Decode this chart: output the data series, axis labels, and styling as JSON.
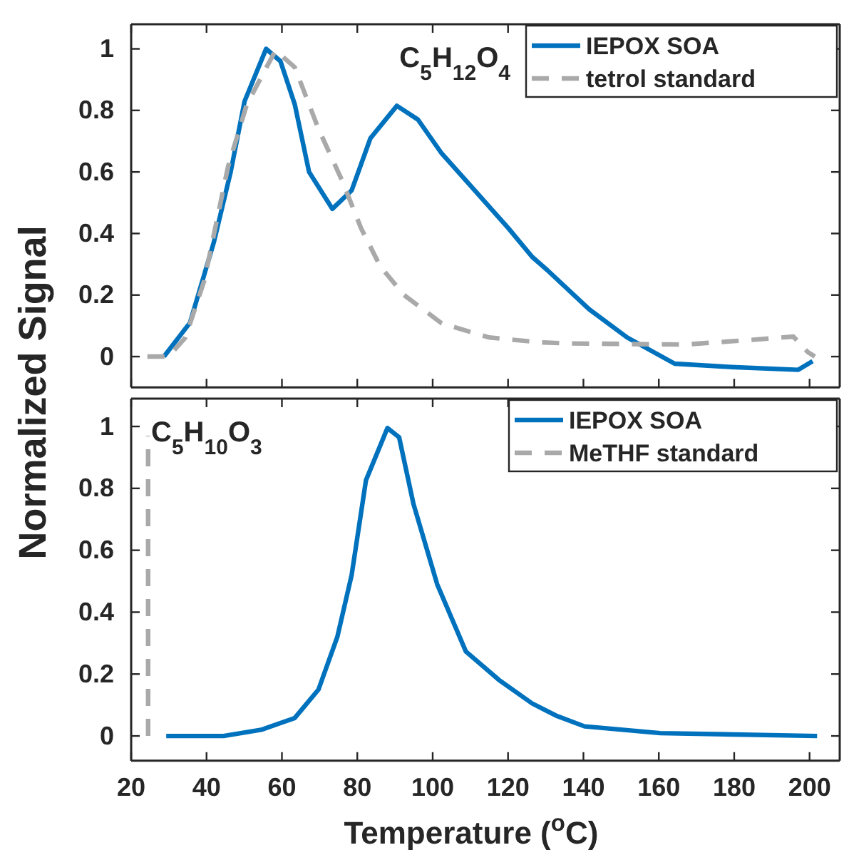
{
  "chart_data": [
    {
      "type": "line",
      "ylabel": "Normalized Signal",
      "annotations": [
        "C$_{5}$H$_{12}$O$_{4}$"
      ],
      "xlim": [
        20,
        208
      ],
      "xticks": [
        20,
        40,
        60,
        80,
        100,
        120,
        140,
        160,
        180,
        200
      ],
      "ylim": [
        -0.1,
        1.08
      ],
      "yticks": [
        0,
        0.2,
        0.4,
        0.6,
        0.8,
        1
      ],
      "tick_labels": "y",
      "legend": "top right",
      "line_style": "solid",
      "series": [
        {
          "name": "IEPOX SOA",
          "color": "#0072bd",
          "x": [
            28.7,
            35.6,
            41.9,
            46.4,
            50.1,
            55.8,
            59.6,
            63.4,
            67.2,
            73.4,
            78.5,
            83.5,
            90.5,
            96.1,
            102.4,
            110,
            120.1,
            126.4,
            130.5,
            141.5,
            151.6,
            164.2,
            179.3,
            197,
            200.8
          ],
          "values": [
            0,
            0.11,
            0.37,
            0.6,
            0.83,
            1,
            0.96,
            0.82,
            0.6,
            0.48,
            0.54,
            0.71,
            0.815,
            0.77,
            0.66,
            0.556,
            0.417,
            0.324,
            0.28,
            0.154,
            0.062,
            -0.023,
            -0.034,
            -0.043,
            -0.015
          ]
        },
        {
          "name": "tetrol standard",
          "color": "#a9a9a9",
          "line_style": "dashed",
          "x": [
            24.3,
            29.9,
            34.4,
            39.4,
            45.7,
            50.7,
            58.3,
            63.4,
            69.7,
            76,
            81,
            86.1,
            92.4,
            102.4,
            115,
            128.9,
            135.2,
            166.7,
            184.4,
            195.7,
            199.5,
            201.4
          ],
          "values": [
            0,
            0,
            0.062,
            0.247,
            0.617,
            0.82,
            0.995,
            0.94,
            0.74,
            0.571,
            0.417,
            0.293,
            0.2,
            0.108,
            0.062,
            0.046,
            0.043,
            0.039,
            0.054,
            0.065,
            0.015,
            0
          ]
        }
      ]
    },
    {
      "type": "line",
      "xlabel": "Temperature ($^{o}$C)",
      "annotations": [
        "C$_{5}$H$_{10}$O$_{3}$"
      ],
      "xlim": [
        20,
        208
      ],
      "xticks": [
        20,
        40,
        60,
        80,
        100,
        120,
        140,
        160,
        180,
        200
      ],
      "ylim": [
        -0.08,
        1.09
      ],
      "yticks": [
        0,
        0.2,
        0.4,
        0.6,
        0.8,
        1
      ],
      "legend": "top right",
      "line_style": "solid",
      "series": [
        {
          "name": "IEPOX SOA",
          "color": "#0072bd",
          "x": [
            29.3,
            44.5,
            54.5,
            63.4,
            69.7,
            74.7,
            78.5,
            82.3,
            88,
            91.1,
            94.9,
            101.2,
            108.8,
            117.6,
            126.4,
            132.7,
            140.3,
            160.4,
            202
          ],
          "values": [
            0,
            0,
            0.02,
            0.058,
            0.15,
            0.32,
            0.52,
            0.826,
            0.995,
            0.965,
            0.75,
            0.49,
            0.273,
            0.181,
            0.105,
            0.066,
            0.031,
            0.009,
            0
          ]
        },
        {
          "name": "MeTHF standard",
          "color": "#a9a9a9",
          "line_style": "dashed",
          "x": [
            24.5,
            24.5
          ],
          "values": [
            0,
            0.97
          ]
        }
      ]
    }
  ]
}
